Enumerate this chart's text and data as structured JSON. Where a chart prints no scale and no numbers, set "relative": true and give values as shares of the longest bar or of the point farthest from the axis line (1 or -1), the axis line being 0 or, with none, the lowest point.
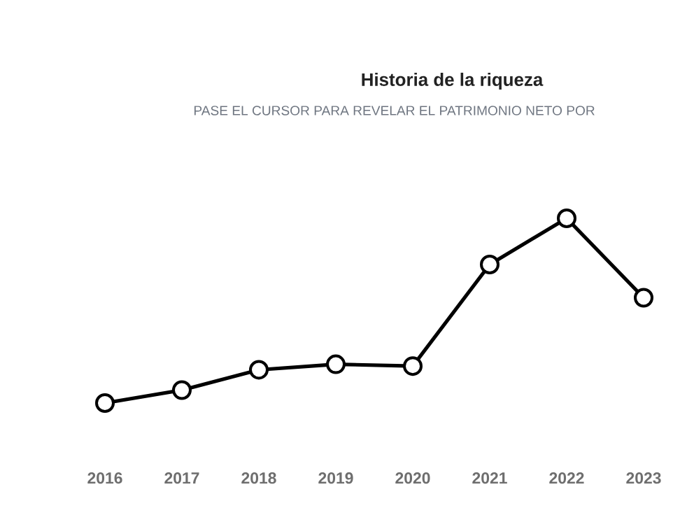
{
  "chart_data": {
    "type": "line",
    "title": "Historia de la riqueza",
    "subtitle": "PASE EL CURSOR PARA REVELAR EL PATRIMONIO NETO POR",
    "categories": [
      "2016",
      "2017",
      "2018",
      "2019",
      "2020",
      "2021",
      "2022",
      "2023"
    ],
    "values": [
      0,
      0.07,
      0.18,
      0.21,
      0.2,
      0.75,
      1,
      0.57
    ],
    "color": "#000000",
    "relative": true,
    "marker": "circle",
    "line_style": "solid"
  }
}
